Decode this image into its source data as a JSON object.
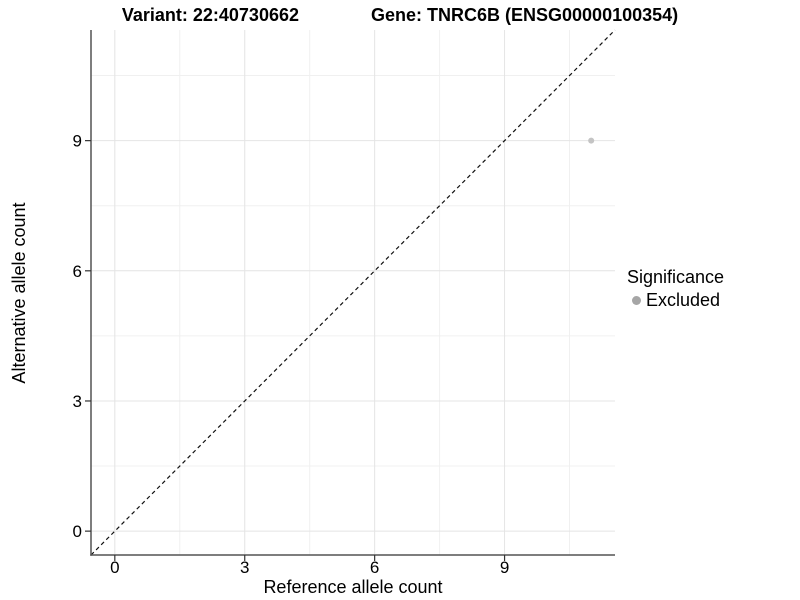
{
  "title": {
    "variant": "Variant: 22:40730662",
    "gene": "Gene: TNRC6B (ENSG00000100354)"
  },
  "axes": {
    "x_label": "Reference allele count",
    "y_label": "Alternative allele count"
  },
  "legend": {
    "title": "Significance",
    "items": [
      {
        "label": "Excluded",
        "color": "#a6a6a6"
      }
    ]
  },
  "chart_data": {
    "type": "scatter",
    "title": "Variant: 22:40730662    Gene: TNRC6B (ENSG00000100354)",
    "xlabel": "Reference allele count",
    "ylabel": "Alternative allele count",
    "xlim": [
      -0.55,
      11.55
    ],
    "ylim": [
      -0.55,
      11.55
    ],
    "x_ticks": [
      0,
      3,
      6,
      9
    ],
    "y_ticks": [
      0,
      3,
      6,
      9
    ],
    "x_minor_ticks": [
      1.5,
      4.5,
      7.5,
      10.5
    ],
    "y_minor_ticks": [
      1.5,
      4.5,
      7.5,
      10.5
    ],
    "grid": true,
    "legend_position": "right",
    "series": [
      {
        "name": "Excluded",
        "color": "#c4c4c4",
        "points": [
          [
            11,
            9
          ]
        ]
      }
    ],
    "reference_line": {
      "type": "identity",
      "style": "dashed",
      "from": [
        -0.55,
        -0.55
      ],
      "to": [
        11.55,
        11.55
      ]
    }
  },
  "colors": {
    "background": "#ffffff",
    "grid_major": "#e4e4e4",
    "grid_minor": "#f0f0f0",
    "axis_line": "#545454",
    "tick": "#333333",
    "text": "#000000",
    "identity_line": "#111111",
    "point": "#c4c4c4",
    "legend_point": "#a6a6a6"
  }
}
